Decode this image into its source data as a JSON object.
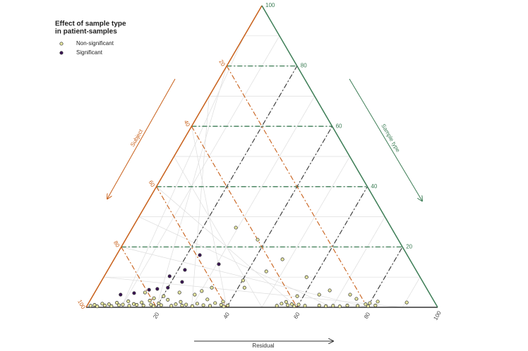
{
  "chart_data": {
    "type": "ternary",
    "legend_title": [
      "Effect of sample type",
      "in patient-samples"
    ],
    "axes": {
      "residual": {
        "title": "Residual",
        "color": "#333333",
        "ticks": [
          20,
          40,
          60,
          80,
          100
        ]
      },
      "subject": {
        "title": "Subject",
        "color": "#c8601a",
        "ticks": [
          20,
          40,
          60,
          80,
          100
        ]
      },
      "sample_type": {
        "title": "Sample type",
        "color": "#3c7d55",
        "ticks": [
          20,
          40,
          60,
          80,
          100
        ]
      }
    },
    "minor_ticks": [
      10,
      20,
      30,
      40,
      50,
      60,
      70,
      80,
      90
    ],
    "legend": "top-left",
    "series": [
      {
        "name": "Non-significant",
        "color": "#e6e6a0",
        "residual": [
          29.4,
          37.6,
          47.9,
          45.3,
          40.2,
          41.8,
          57.7,
          58.2,
          66.5,
          64.2,
          73.0,
          75.5,
          82.0,
          90.4,
          80.0,
          30.2,
          28.8,
          32.5,
          33.2,
          38.0,
          24.1,
          20.2,
          14.3,
          17.8,
          1.0,
          2.0,
          3.0,
          4.0,
          5.0,
          6.0,
          7.0,
          8.0,
          9.0,
          10.0,
          11.0,
          12.0,
          13.0,
          14.0,
          15.0,
          16.0,
          17.0,
          18.0,
          19.0,
          20.0,
          21.0,
          22.0,
          24.0,
          25.0,
          26.0,
          27.0,
          28.0,
          30.0,
          31.0,
          33.0,
          35.0,
          36.0,
          38.0,
          39.0,
          40.0,
          54.0,
          55.0,
          56.0,
          57.0,
          58.0,
          59.0,
          60.0,
          62.0,
          66.0,
          68.0,
          70.0,
          72.0,
          74.0,
          77.0,
          79.0,
          80.0,
          82.0
        ],
        "sample_type": [
          26.4,
          22.4,
          15.9,
          11.9,
          8.9,
          6.5,
          10.0,
          3.7,
          5.6,
          4.2,
          4.2,
          2.8,
          1.9,
          1.6,
          1.4,
          5.4,
          4.2,
          6.5,
          2.6,
          1.9,
          4.9,
          3.7,
          4.9,
          3.0,
          0.5,
          0.8,
          0.3,
          1.2,
          0.6,
          1.0,
          0.4,
          1.5,
          0.7,
          0.9,
          2.0,
          0.5,
          1.1,
          0.8,
          1.6,
          0.6,
          2.2,
          0.9,
          0.4,
          1.3,
          0.7,
          2.5,
          0.5,
          1.0,
          1.8,
          0.6,
          0.9,
          0.4,
          1.2,
          0.7,
          0.5,
          1.4,
          0.8,
          0.3,
          0.6,
          0.5,
          1.2,
          1.8,
          0.7,
          1.0,
          0.4,
          0.9,
          0.5,
          0.6,
          0.4,
          0.5,
          0.3,
          0.6,
          0.5,
          1.0,
          0.4,
          0.6
        ]
      },
      {
        "name": "Significant",
        "color": "#3b1456",
        "residual": [
          23.7,
          30.6,
          21.9,
          18.6,
          23.1,
          20.0,
          17.2,
          15.0,
          7.7,
          11.3
        ],
        "sample_type": [
          17.3,
          14.3,
          12.4,
          10.3,
          8.4,
          6.5,
          6.1,
          5.8,
          4.2,
          4.7
        ]
      }
    ]
  }
}
